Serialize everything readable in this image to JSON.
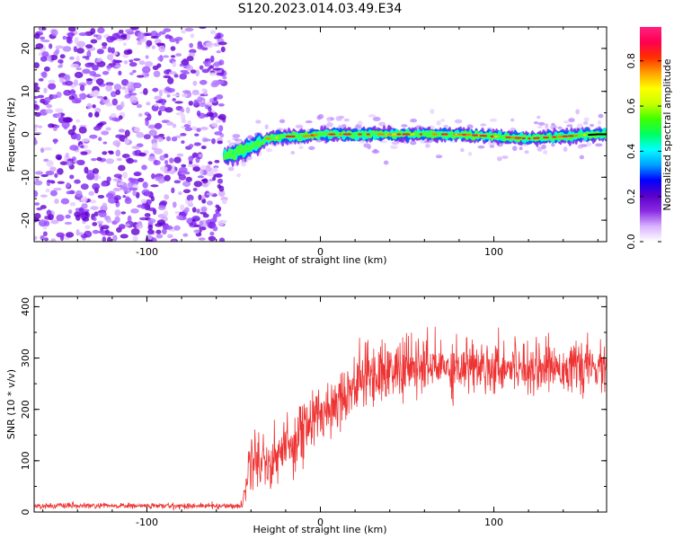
{
  "figure_title": "S120.2023.014.03.49.E34",
  "chart_data": [
    {
      "type": "heatmap",
      "name": "spectrogram",
      "xlabel": "Height of straight line (km)",
      "ylabel": "Frequency (Hz)",
      "xlim": [
        -165,
        165
      ],
      "ylim": [
        -25,
        25
      ],
      "xticks": [
        -100,
        0,
        100
      ],
      "yticks": [
        -20,
        -10,
        0,
        10,
        20
      ],
      "colorbar": {
        "label": "Normalized spectral amplitude",
        "range": [
          0.0,
          0.95
        ],
        "ticks": [
          "0.0",
          "0.2",
          "0.4",
          "0.6",
          "0.8"
        ],
        "colormap": [
          "#ffffff",
          "#d9b3ff",
          "#8a2be2",
          "#5a00c8",
          "#0000ff",
          "#00a0ff",
          "#00ffff",
          "#00ff60",
          "#40ff00",
          "#c8ff00",
          "#ffff00",
          "#ffa000",
          "#ff3000",
          "#ff0050",
          "#ff2080"
        ]
      },
      "noise_region_x": [
        -165,
        -55
      ],
      "tone_track": {
        "x": [
          -55,
          -50,
          -45,
          -40,
          -35,
          -30,
          -20,
          -10,
          0,
          20,
          40,
          60,
          80,
          100,
          120,
          140,
          160,
          165
        ],
        "freq": [
          -5,
          -4.5,
          -4,
          -3,
          -2,
          -1,
          -0.5,
          -0.5,
          0,
          0,
          0,
          0,
          0,
          -0.5,
          -1,
          -0.5,
          0,
          0
        ]
      }
    },
    {
      "type": "line",
      "name": "snr",
      "xlabel": "Height of straight line (km)",
      "ylabel": "SNR (10 * v/v)",
      "xlim": [
        -165,
        165
      ],
      "ylim": [
        0,
        420
      ],
      "xticks": [
        -100,
        0,
        100
      ],
      "yticks": [
        0,
        100,
        200,
        300,
        400
      ],
      "color": "#ee3333",
      "profile": {
        "x": [
          -165,
          -45,
          -42,
          -38,
          -30,
          -20,
          -10,
          0,
          10,
          20,
          30,
          50,
          80,
          120,
          165
        ],
        "mean": [
          12,
          12,
          80,
          110,
          95,
          125,
          160,
          190,
          220,
          250,
          270,
          280,
          285,
          285,
          280
        ],
        "spread": [
          5,
          5,
          45,
          50,
          55,
          60,
          60,
          55,
          55,
          55,
          55,
          55,
          50,
          45,
          40
        ]
      }
    }
  ]
}
